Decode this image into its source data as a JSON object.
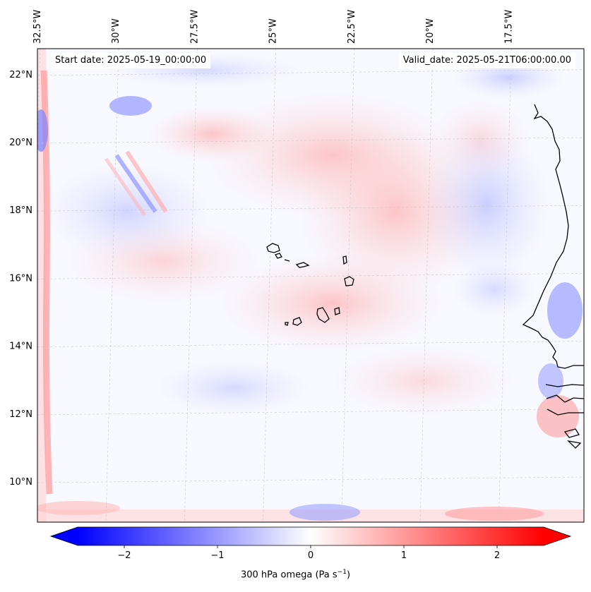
{
  "header": {
    "start_label": "Start date: 2025-05-19_00:00:00",
    "valid_label": "Valid_date: 2025-05-21T06:00:00.00"
  },
  "map": {
    "lon_ticks": [
      "32.5°W",
      "30°W",
      "27.5°W",
      "25°W",
      "22.5°W",
      "20°W",
      "17.5°W"
    ],
    "lat_ticks": [
      "22°N",
      "20°N",
      "18°N",
      "16°N",
      "14°N",
      "12°N",
      "10°N"
    ],
    "lon_values": [
      -32.5,
      -30,
      -27.5,
      -25,
      -22.5,
      -20,
      -17.5
    ],
    "lat_values": [
      22,
      20,
      18,
      16,
      14,
      12,
      10
    ],
    "extent": {
      "lon_min": -32.7,
      "lon_max": -15.8,
      "lat_min": 8.9,
      "lat_max": 22.7
    }
  },
  "colorbar": {
    "label": "300 hPa omega (Pa s",
    "label_sup": "−1",
    "label_tail": ")",
    "range": [
      -2.5,
      2.5
    ],
    "ticks": [
      -2,
      -1,
      0,
      1,
      2
    ],
    "tick_labels": [
      "−2",
      "−1",
      "0",
      "1",
      "2"
    ],
    "cmap": "bwr",
    "colors": {
      "low": "#0000ff",
      "mid": "#ffffff",
      "high": "#ff0000"
    },
    "extend": "both"
  }
}
